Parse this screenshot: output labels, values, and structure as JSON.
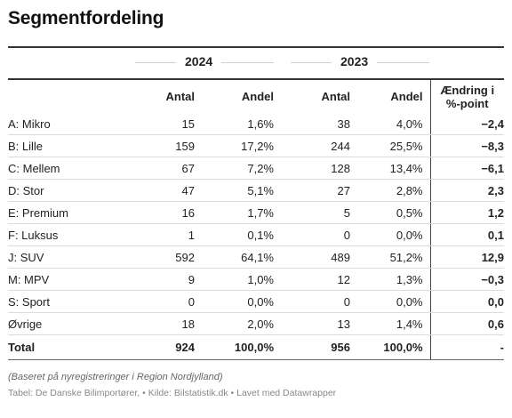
{
  "title": "Segmentfordeling",
  "years": [
    "2024",
    "2023"
  ],
  "headers": {
    "antal": "Antal",
    "andel": "Andel",
    "change_line1": "Ændring i",
    "change_line2": "%-point"
  },
  "chart_data": {
    "type": "table",
    "title": "Segmentfordeling",
    "columns": [
      "",
      "2024 Antal",
      "2024 Andel",
      "2023 Antal",
      "2023 Andel",
      "Ændring i %-point"
    ],
    "rows": [
      {
        "segment": "A: Mikro",
        "antal_2024": "15",
        "andel_2024": "1,6%",
        "antal_2023": "38",
        "andel_2023": "4,0%",
        "change": "−2,4"
      },
      {
        "segment": "B: Lille",
        "antal_2024": "159",
        "andel_2024": "17,2%",
        "antal_2023": "244",
        "andel_2023": "25,5%",
        "change": "−8,3"
      },
      {
        "segment": "C: Mellem",
        "antal_2024": "67",
        "andel_2024": "7,2%",
        "antal_2023": "128",
        "andel_2023": "13,4%",
        "change": "−6,1"
      },
      {
        "segment": "D: Stor",
        "antal_2024": "47",
        "andel_2024": "5,1%",
        "antal_2023": "27",
        "andel_2023": "2,8%",
        "change": "2,3"
      },
      {
        "segment": "E: Premium",
        "antal_2024": "16",
        "andel_2024": "1,7%",
        "antal_2023": "5",
        "andel_2023": "0,5%",
        "change": "1,2"
      },
      {
        "segment": "F: Luksus",
        "antal_2024": "1",
        "andel_2024": "0,1%",
        "antal_2023": "0",
        "andel_2023": "0,0%",
        "change": "0,1"
      },
      {
        "segment": "J: SUV",
        "antal_2024": "592",
        "andel_2024": "64,1%",
        "antal_2023": "489",
        "andel_2023": "51,2%",
        "change": "12,9"
      },
      {
        "segment": "M: MPV",
        "antal_2024": "9",
        "andel_2024": "1,0%",
        "antal_2023": "12",
        "andel_2023": "1,3%",
        "change": "−0,3"
      },
      {
        "segment": "S: Sport",
        "antal_2024": "0",
        "andel_2024": "0,0%",
        "antal_2023": "0",
        "andel_2023": "0,0%",
        "change": "0,0"
      },
      {
        "segment": "Øvrige",
        "antal_2024": "18",
        "andel_2024": "2,0%",
        "antal_2023": "13",
        "andel_2023": "1,4%",
        "change": "0,6"
      }
    ],
    "total": {
      "segment": "Total",
      "antal_2024": "924",
      "andel_2024": "100,0%",
      "antal_2023": "956",
      "andel_2023": "100,0%",
      "change": "-"
    }
  },
  "footnote": "(Baseret på nyregistreringer i Region Nordjylland)",
  "source": "Tabel: De Danske Bilimportører,  • Kilde: Bilstatistik.dk • Lavet med Datawrapper"
}
